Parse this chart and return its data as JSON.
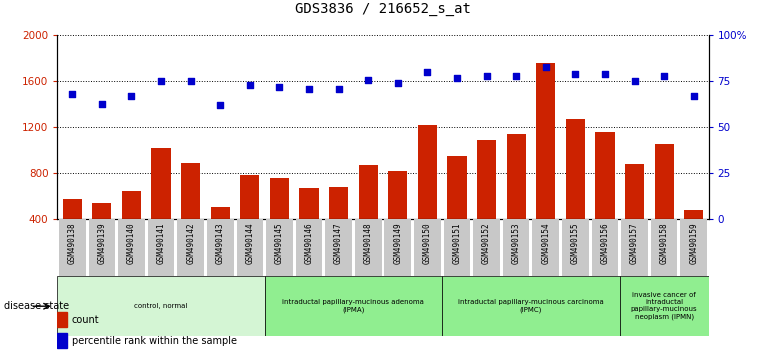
{
  "title": "GDS3836 / 216652_s_at",
  "samples": [
    "GSM490138",
    "GSM490139",
    "GSM490140",
    "GSM490141",
    "GSM490142",
    "GSM490143",
    "GSM490144",
    "GSM490145",
    "GSM490146",
    "GSM490147",
    "GSM490148",
    "GSM490149",
    "GSM490150",
    "GSM490151",
    "GSM490152",
    "GSM490153",
    "GSM490154",
    "GSM490155",
    "GSM490156",
    "GSM490157",
    "GSM490158",
    "GSM490159"
  ],
  "counts": [
    580,
    540,
    650,
    1020,
    890,
    510,
    790,
    760,
    670,
    680,
    870,
    820,
    1220,
    950,
    1090,
    1140,
    1760,
    1270,
    1160,
    880,
    1060,
    480
  ],
  "percentiles": [
    68,
    63,
    67,
    75,
    75,
    62,
    73,
    72,
    71,
    71,
    76,
    74,
    80,
    77,
    78,
    78,
    83,
    79,
    79,
    75,
    78,
    67
  ],
  "bar_color": "#cc2200",
  "dot_color": "#0000cc",
  "ylim_left": [
    400,
    2000
  ],
  "ylim_right": [
    0,
    100
  ],
  "yticks_left": [
    400,
    800,
    1200,
    1600,
    2000
  ],
  "yticks_right": [
    0,
    25,
    50,
    75,
    100
  ],
  "ytick_labels_right": [
    "0",
    "25",
    "50",
    "75",
    "100%"
  ],
  "groups": [
    {
      "label": "control, normal",
      "start": 0,
      "end": 7,
      "color": "#d4f5d4"
    },
    {
      "label": "intraductal papillary-mucinous adenoma\n(IPMA)",
      "start": 7,
      "end": 13,
      "color": "#90ee90"
    },
    {
      "label": "intraductal papillary-mucinous carcinoma\n(IPMC)",
      "start": 13,
      "end": 19,
      "color": "#90ee90"
    },
    {
      "label": "invasive cancer of\nintraductal\npapillary-mucinous\nneoplasm (IPMN)",
      "start": 19,
      "end": 22,
      "color": "#90ee90"
    }
  ],
  "background_color": "#ffffff",
  "tick_bg_color": "#c8c8c8"
}
